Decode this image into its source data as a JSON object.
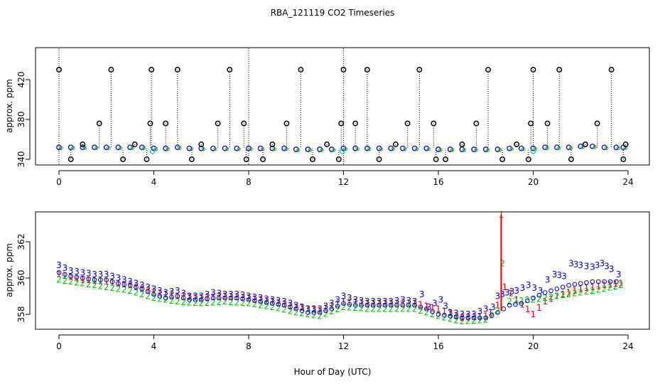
{
  "title": "RBA_121119  CO2 Timeseries",
  "xlabel": "Hour of Day (UTC)",
  "chart_data": [
    {
      "type": "scatter",
      "panel": "top",
      "ylabel": "approx. ppm",
      "xlim": [
        0,
        24
      ],
      "ylim": [
        338,
        432
      ],
      "x_ticks": [
        "0",
        "4",
        "8",
        "12",
        "16",
        "20",
        "24"
      ],
      "y_ticks": [
        "340",
        "380",
        "420"
      ],
      "series": [
        {
          "values": [
            [
              0,
              352
            ],
            [
              0.5,
              352
            ],
            [
              1,
              352
            ],
            [
              1.5,
              352
            ],
            [
              2,
              352
            ],
            [
              2.5,
              352
            ],
            [
              3,
              352
            ],
            [
              3.5,
              352
            ],
            [
              4,
              351
            ],
            [
              4.5,
              351
            ],
            [
              5,
              352
            ],
            [
              5.5,
              351
            ],
            [
              6,
              351
            ],
            [
              6.5,
              351
            ],
            [
              7,
              351
            ],
            [
              7.5,
              351
            ],
            [
              8,
              351
            ],
            [
              8.5,
              351
            ],
            [
              9,
              351
            ],
            [
              9.5,
              351
            ],
            [
              10,
              350
            ],
            [
              10.5,
              350
            ],
            [
              11,
              350
            ],
            [
              11.5,
              350
            ],
            [
              12,
              351
            ],
            [
              12.5,
              351
            ],
            [
              13,
              351
            ],
            [
              13.5,
              351
            ],
            [
              14,
              351
            ],
            [
              14.5,
              351
            ],
            [
              15,
              351
            ],
            [
              15.5,
              351
            ],
            [
              16,
              350
            ],
            [
              16.5,
              350
            ],
            [
              17,
              350
            ],
            [
              17.5,
              350
            ],
            [
              18,
              350
            ],
            [
              18.5,
              350
            ],
            [
              19,
              351
            ],
            [
              19.5,
              351
            ],
            [
              20,
              351
            ],
            [
              20.5,
              352
            ],
            [
              21,
              352
            ],
            [
              21.5,
              352
            ],
            [
              22,
              353
            ],
            [
              22.5,
              353
            ],
            [
              23,
              352
            ],
            [
              23.5,
              352
            ],
            [
              23.8,
              352
            ]
          ]
        },
        {
          "values": [
            [
              0,
              430
            ],
            [
              0.5,
              340
            ],
            [
              1,
              355
            ],
            [
              1.7,
              376
            ],
            [
              2.2,
              430
            ],
            [
              2.7,
              340
            ],
            [
              3.2,
              355
            ],
            [
              3.7,
              340
            ],
            [
              3.85,
              376
            ],
            [
              3.9,
              430
            ],
            [
              4.5,
              376
            ],
            [
              5,
              430
            ],
            [
              5.6,
              340
            ],
            [
              6,
              355
            ],
            [
              6.7,
              376
            ],
            [
              7.2,
              430
            ],
            [
              7.8,
              376
            ],
            [
              7.9,
              340
            ],
            [
              8.6,
              340
            ],
            [
              9,
              355
            ],
            [
              9.6,
              376
            ],
            [
              10.2,
              430
            ],
            [
              10.7,
              340
            ],
            [
              11.3,
              355
            ],
            [
              11.8,
              340
            ],
            [
              11.9,
              376
            ],
            [
              12,
              430
            ],
            [
              12.5,
              376
            ],
            [
              13,
              430
            ],
            [
              13.5,
              340
            ],
            [
              14.2,
              355
            ],
            [
              14.7,
              376
            ],
            [
              15.2,
              430
            ],
            [
              15.8,
              376
            ],
            [
              15.9,
              340
            ],
            [
              16.3,
              340
            ],
            [
              17,
              355
            ],
            [
              17.6,
              376
            ],
            [
              18.1,
              430
            ],
            [
              18.7,
              340
            ],
            [
              19.3,
              355
            ],
            [
              19.8,
              340
            ],
            [
              19.9,
              376
            ],
            [
              20,
              430
            ],
            [
              20.6,
              376
            ],
            [
              21.1,
              430
            ],
            [
              21.6,
              340
            ],
            [
              22.2,
              355
            ],
            [
              22.7,
              376
            ],
            [
              23.3,
              430
            ],
            [
              23.8,
              340
            ],
            [
              23.9,
              355
            ]
          ]
        },
        {
          "values": [
            [
              3.95,
              348
            ],
            [
              11.95,
              348
            ],
            [
              20.0,
              348
            ]
          ]
        }
      ]
    },
    {
      "type": "scatter",
      "panel": "bottom",
      "ylabel": "approx. ppm",
      "xlim": [
        0,
        24
      ],
      "ylim": [
        357.2,
        363.8
      ],
      "x_ticks": [
        "0",
        "4",
        "8",
        "12",
        "16",
        "20",
        "24"
      ],
      "y_ticks": [
        "358",
        "360",
        "362"
      ],
      "series": [
        {
          "marker": "1",
          "values": [
            [
              0,
              360.2
            ],
            [
              1,
              359.9
            ],
            [
              2,
              359.8
            ],
            [
              3,
              359.6
            ],
            [
              4,
              359.2
            ],
            [
              5,
              359.0
            ],
            [
              6,
              358.9
            ],
            [
              7,
              359.0
            ],
            [
              8,
              358.9
            ],
            [
              9,
              358.7
            ],
            [
              10,
              358.4
            ],
            [
              11,
              358.2
            ],
            [
              12,
              358.7
            ],
            [
              13,
              358.6
            ],
            [
              14,
              358.6
            ],
            [
              15,
              358.6
            ],
            [
              16,
              358.3
            ],
            [
              17,
              357.8
            ],
            [
              18,
              357.9
            ],
            [
              18.2,
              358.1
            ],
            [
              18.5,
              358.5
            ],
            [
              18.65,
              363.5
            ],
            [
              18.8,
              359.5
            ],
            [
              19.3,
              358.8
            ],
            [
              20,
              358.0
            ],
            [
              20.5,
              358.7
            ],
            [
              21,
              359.0
            ],
            [
              22,
              359.4
            ],
            [
              23,
              359.6
            ],
            [
              23.7,
              359.7
            ]
          ]
        },
        {
          "marker": "2",
          "values": [
            [
              0,
              359.9
            ],
            [
              1,
              359.7
            ],
            [
              2,
              359.5
            ],
            [
              3,
              359.3
            ],
            [
              4,
              358.9
            ],
            [
              5,
              358.7
            ],
            [
              6,
              358.6
            ],
            [
              7,
              358.7
            ],
            [
              8,
              358.6
            ],
            [
              9,
              358.4
            ],
            [
              10,
              358.1
            ],
            [
              11,
              357.9
            ],
            [
              12,
              358.4
            ],
            [
              13,
              358.3
            ],
            [
              14,
              358.3
            ],
            [
              15,
              358.3
            ],
            [
              16,
              357.9
            ],
            [
              17,
              357.6
            ],
            [
              18,
              357.7
            ],
            [
              18.5,
              358.2
            ],
            [
              18.7,
              360.8
            ],
            [
              19,
              358.7
            ],
            [
              20,
              358.8
            ],
            [
              21,
              359.0
            ],
            [
              22,
              359.2
            ],
            [
              23,
              359.4
            ],
            [
              23.7,
              359.6
            ]
          ]
        },
        {
          "marker": "3",
          "values": [
            [
              0,
              360.7
            ],
            [
              0.5,
              360.4
            ],
            [
              1,
              360.3
            ],
            [
              1.5,
              360.2
            ],
            [
              2,
              360.2
            ],
            [
              2.5,
              360.0
            ],
            [
              3,
              359.8
            ],
            [
              3.5,
              359.6
            ],
            [
              4,
              359.4
            ],
            [
              4.5,
              359.2
            ],
            [
              5,
              359.3
            ],
            [
              5.5,
              359.0
            ],
            [
              6,
              359.0
            ],
            [
              6.5,
              359.2
            ],
            [
              7,
              359.1
            ],
            [
              7.5,
              359.1
            ],
            [
              8,
              359.0
            ],
            [
              8.5,
              358.9
            ],
            [
              9,
              358.8
            ],
            [
              9.5,
              358.7
            ],
            [
              10,
              358.5
            ],
            [
              10.5,
              358.3
            ],
            [
              11,
              358.3
            ],
            [
              11.5,
              358.6
            ],
            [
              12,
              359.0
            ],
            [
              12.5,
              358.8
            ],
            [
              13,
              358.7
            ],
            [
              13.5,
              358.7
            ],
            [
              14,
              358.7
            ],
            [
              14.5,
              358.8
            ],
            [
              15,
              358.7
            ],
            [
              15.3,
              359.1
            ],
            [
              15.6,
              358.4
            ],
            [
              16.1,
              358.8
            ],
            [
              16.5,
              358.1
            ],
            [
              17,
              358.0
            ],
            [
              17.5,
              358.0
            ],
            [
              18,
              358.3
            ],
            [
              18.3,
              358.4
            ],
            [
              18.5,
              359.0
            ],
            [
              18.9,
              359.2
            ],
            [
              19.3,
              359.3
            ],
            [
              19.8,
              359.6
            ],
            [
              20.3,
              359.3
            ],
            [
              20.6,
              359.9
            ],
            [
              20.9,
              360.2
            ],
            [
              21.3,
              360.1
            ],
            [
              21.6,
              360.8
            ],
            [
              22,
              360.7
            ],
            [
              22.5,
              360.6
            ],
            [
              22.9,
              360.8
            ],
            [
              23.3,
              360.5
            ],
            [
              23.6,
              360.2
            ]
          ]
        },
        {
          "marker": "o",
          "values": [
            [
              0,
              360.3
            ],
            [
              0.5,
              360.1
            ],
            [
              1,
              360.0
            ],
            [
              1.5,
              359.9
            ],
            [
              2,
              359.9
            ],
            [
              2.5,
              359.7
            ],
            [
              3,
              359.6
            ],
            [
              3.5,
              359.4
            ],
            [
              4,
              359.1
            ],
            [
              4.5,
              358.9
            ],
            [
              5,
              359.0
            ],
            [
              5.5,
              358.8
            ],
            [
              6,
              358.8
            ],
            [
              6.5,
              358.9
            ],
            [
              7,
              358.9
            ],
            [
              7.5,
              358.9
            ],
            [
              8,
              358.8
            ],
            [
              8.5,
              358.7
            ],
            [
              9,
              358.6
            ],
            [
              9.5,
              358.5
            ],
            [
              10,
              358.3
            ],
            [
              10.5,
              358.1
            ],
            [
              11,
              358.1
            ],
            [
              11.5,
              358.3
            ],
            [
              12,
              358.6
            ],
            [
              12.5,
              358.5
            ],
            [
              13,
              358.5
            ],
            [
              13.5,
              358.5
            ],
            [
              14,
              358.5
            ],
            [
              14.5,
              358.5
            ],
            [
              15,
              358.5
            ],
            [
              15.5,
              358.3
            ],
            [
              16,
              358.0
            ],
            [
              16.5,
              357.9
            ],
            [
              17,
              357.8
            ],
            [
              17.5,
              357.8
            ],
            [
              18,
              357.8
            ],
            [
              18.5,
              358.1
            ],
            [
              19,
              358.5
            ],
            [
              19.5,
              358.6
            ],
            [
              20,
              358.9
            ],
            [
              20.5,
              359.2
            ],
            [
              21,
              359.4
            ],
            [
              21.5,
              359.6
            ],
            [
              22,
              359.7
            ],
            [
              22.5,
              359.8
            ],
            [
              23,
              359.8
            ],
            [
              23.5,
              359.8
            ]
          ]
        }
      ]
    }
  ]
}
